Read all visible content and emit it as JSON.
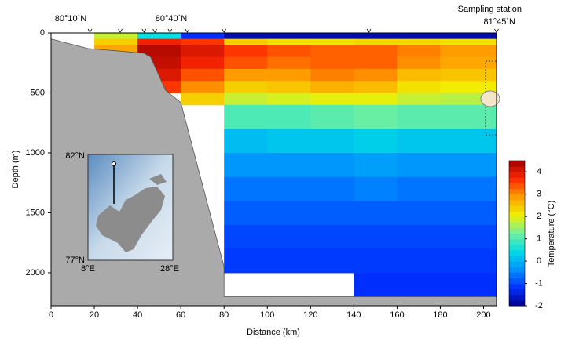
{
  "chart_data": {
    "type": "contour",
    "xlabel": "Distance (km)",
    "ylabel": "Depth (m)",
    "xlim": [
      0,
      206
    ],
    "xticks": [
      0,
      20,
      40,
      60,
      80,
      100,
      120,
      140,
      160,
      180,
      200
    ],
    "ylim": [
      0,
      2275
    ],
    "yticks": [
      0,
      500,
      1000,
      1500,
      2000
    ],
    "y_inverted": true,
    "annotations": [
      "80°10´N",
      "80°40´N",
      "Sampling station",
      "81°45´N"
    ],
    "stations": [
      18,
      32,
      43,
      48,
      55,
      63,
      80,
      147,
      206
    ],
    "temperature": {
      "x_edges": [
        0,
        20,
        40,
        60,
        80,
        100,
        120,
        140,
        160,
        180,
        206
      ],
      "depth_edges": [
        0,
        50,
        100,
        200,
        300,
        400,
        500,
        600,
        800,
        1000,
        1200,
        1400,
        1600,
        1800,
        2000,
        2200
      ],
      "values": [
        [
          null,
          1.8,
          0.5,
          -1.2,
          -1.8,
          -1.8,
          -1.8,
          -1.8,
          -1.8,
          -1.8
        ],
        [
          null,
          2.4,
          3.8,
          3.6,
          2.4,
          2.2,
          2.2,
          2.3,
          2.3,
          2.2
        ],
        [
          null,
          2.8,
          4.3,
          4.0,
          3.6,
          3.4,
          3.3,
          3.3,
          3.1,
          2.9
        ],
        [
          null,
          null,
          4.2,
          3.8,
          3.4,
          3.2,
          3.3,
          3.3,
          3.0,
          2.8
        ],
        [
          null,
          null,
          4.0,
          3.4,
          2.9,
          2.9,
          3.1,
          3.0,
          2.6,
          2.5
        ],
        [
          null,
          null,
          3.6,
          3.0,
          2.4,
          2.5,
          2.7,
          2.6,
          2.2,
          2.1
        ],
        [
          null,
          null,
          null,
          2.4,
          1.8,
          1.9,
          2.0,
          2.0,
          1.8,
          1.7
        ],
        [
          null,
          null,
          null,
          null,
          1.0,
          1.0,
          1.1,
          1.2,
          1.1,
          1.1
        ],
        [
          null,
          null,
          null,
          null,
          0.1,
          0.2,
          0.2,
          0.3,
          0.2,
          0.2
        ],
        [
          null,
          null,
          null,
          null,
          -0.3,
          -0.3,
          -0.3,
          -0.2,
          -0.3,
          -0.3
        ],
        [
          null,
          null,
          null,
          null,
          -0.6,
          -0.6,
          -0.6,
          -0.5,
          -0.6,
          -0.6
        ],
        [
          null,
          null,
          null,
          null,
          -0.8,
          -0.8,
          -0.8,
          -0.8,
          -0.8,
          -0.8
        ],
        [
          null,
          null,
          null,
          null,
          -1.0,
          -1.0,
          -1.0,
          -1.0,
          -1.0,
          -1.0
        ],
        [
          null,
          null,
          null,
          null,
          -1.1,
          -1.1,
          -1.1,
          -1.1,
          -1.1,
          -1.1
        ],
        [
          null,
          null,
          null,
          null,
          null,
          null,
          null,
          -1.2,
          -1.2,
          -1.2
        ]
      ]
    },
    "seafloor": {
      "color": "#aaaaaa",
      "distance": [
        0,
        17,
        31,
        43,
        46,
        53,
        60,
        80,
        80,
        206
      ],
      "depth": [
        50,
        130,
        150,
        170,
        200,
        480,
        580,
        1950,
        2200,
        2200
      ]
    },
    "colorbar": {
      "label": "Temperature (°C)",
      "lim": [
        -2,
        4.5
      ],
      "ticks": [
        -2,
        -1,
        0,
        1,
        2,
        3,
        4
      ],
      "colormap": [
        "#00008b",
        "#0030ff",
        "#0090ff",
        "#00dce6",
        "#70f0a0",
        "#f0f000",
        "#ffa000",
        "#ff2800",
        "#a00000"
      ]
    },
    "inset": {
      "labels": [
        "82°N",
        "77°N",
        "8°E",
        "28°E"
      ]
    }
  }
}
